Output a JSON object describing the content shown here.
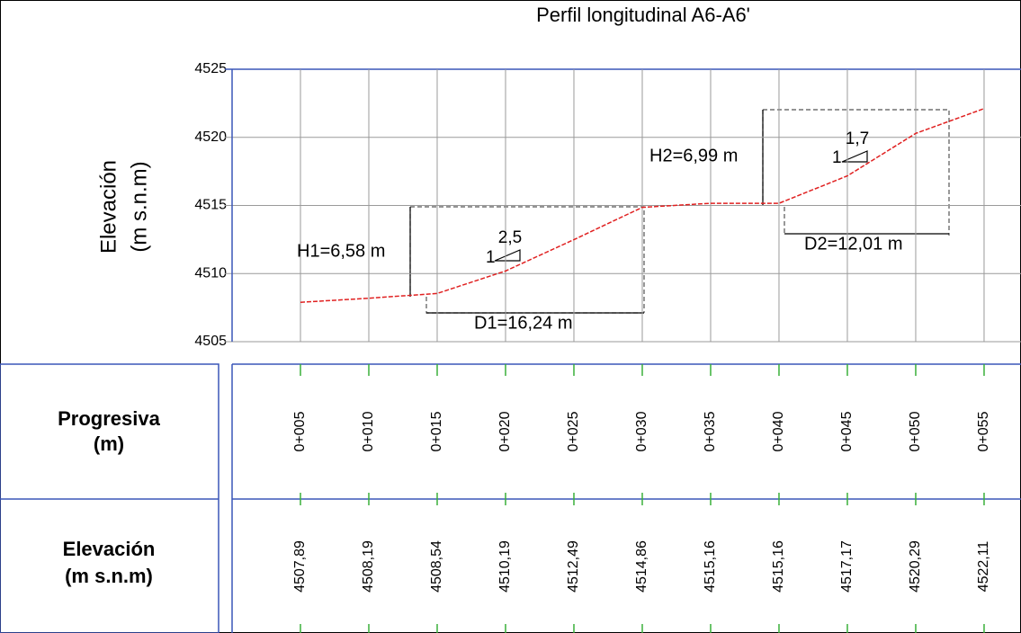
{
  "chart_data": {
    "type": "line",
    "title": "Perfil longitudinal A6-A6'",
    "ylabel": [
      "Elevación",
      "(m s.n.m)"
    ],
    "x": [
      5,
      10,
      15,
      20,
      25,
      30,
      35,
      40,
      45,
      50,
      55
    ],
    "values": [
      4507.89,
      4508.19,
      4508.54,
      4510.19,
      4512.49,
      4514.86,
      4515.16,
      4515.16,
      4517.17,
      4520.29,
      4522.11
    ],
    "value_labels": [
      "4507,89",
      "4508,19",
      "4508,54",
      "4510,19",
      "4512,49",
      "4514,86",
      "4515,16",
      "4515,16",
      "4517,17",
      "4520,29",
      "4522,11"
    ],
    "color": "#e02020",
    "xlim": [
      0,
      57.7
    ],
    "xticks": [
      {
        "value": 5,
        "label": "0+005"
      },
      {
        "value": 10,
        "label": "0+010"
      },
      {
        "value": 15,
        "label": "0+015"
      },
      {
        "value": 20,
        "label": "0+020"
      },
      {
        "value": 25,
        "label": "0+025"
      },
      {
        "value": 30,
        "label": "0+030"
      },
      {
        "value": 35,
        "label": "0+035"
      },
      {
        "value": 40,
        "label": "0+040"
      },
      {
        "value": 45,
        "label": "0+045"
      },
      {
        "value": 50,
        "label": "0+050"
      },
      {
        "value": 55,
        "label": "0+055"
      }
    ],
    "ylim": [
      4505,
      4525
    ],
    "yticks": [
      4505,
      4510,
      4515,
      4520,
      4525
    ],
    "grid": true,
    "table_labels": [
      [
        "Progresiva",
        "(m)"
      ],
      [
        "Elevación",
        "(m s.n.m)"
      ]
    ],
    "annotations": [
      "H1=6,58 m",
      "D1=16,24 m",
      "2,5",
      "1",
      "H2=6,99 m",
      "D2=12,01 m",
      "1,7",
      "1"
    ]
  }
}
